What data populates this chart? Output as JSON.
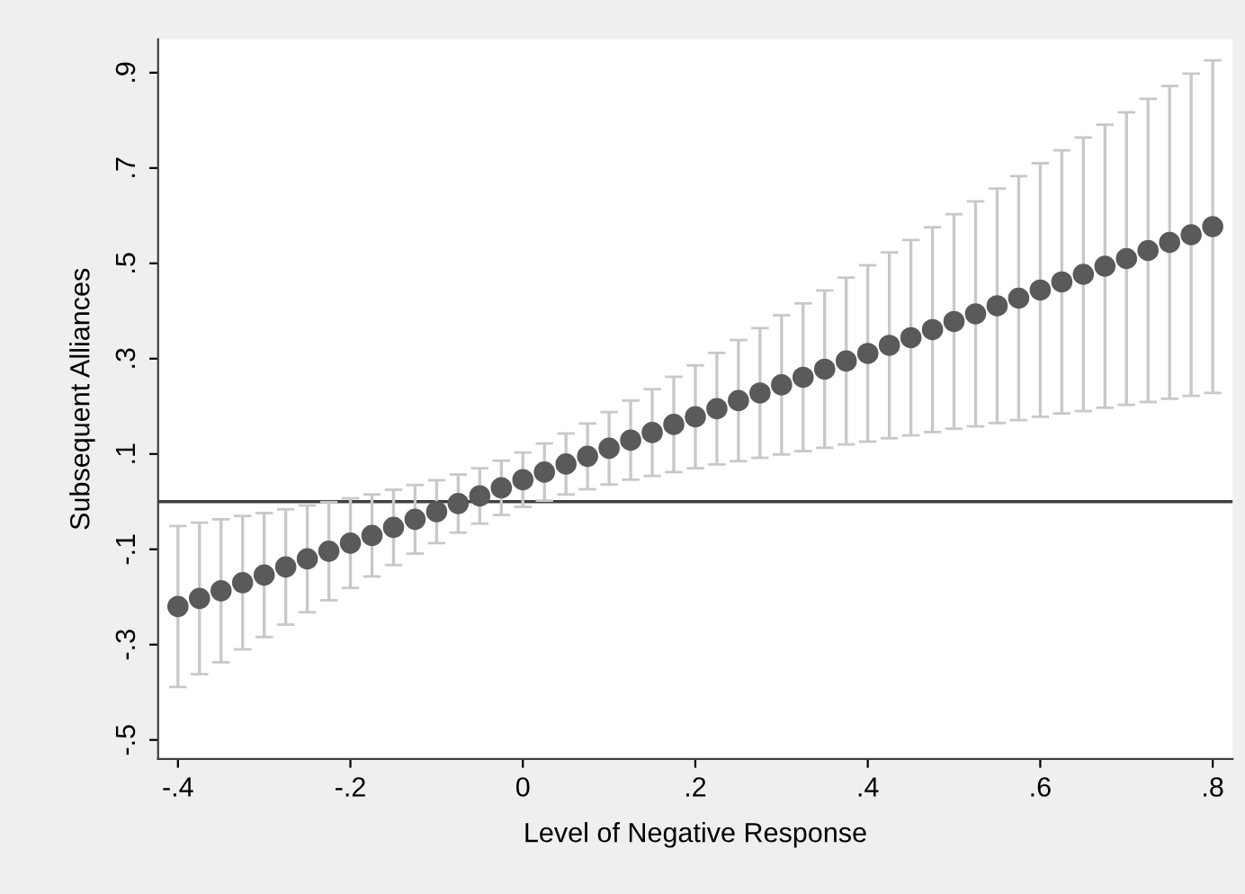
{
  "chart_data": {
    "type": "scatter",
    "xlabel": "Level of Negative Response",
    "ylabel": "Subsequent Alliances",
    "x": [
      -0.4,
      -0.375,
      -0.35,
      -0.325,
      -0.3,
      -0.275,
      -0.25,
      -0.225,
      -0.2,
      -0.175,
      -0.15,
      -0.125,
      -0.1,
      -0.075,
      -0.05,
      -0.025,
      0,
      0.025,
      0.05,
      0.075,
      0.1,
      0.125,
      0.15,
      0.175,
      0.2,
      0.225,
      0.25,
      0.275,
      0.3,
      0.325,
      0.35,
      0.375,
      0.4,
      0.425,
      0.45,
      0.475,
      0.5,
      0.525,
      0.55,
      0.575,
      0.6,
      0.625,
      0.65,
      0.675,
      0.7,
      0.725,
      0.75,
      0.775,
      0.8
    ],
    "series": [
      {
        "color": "#5a5a5a",
        "values": [
          -0.22,
          -0.203,
          -0.187,
          -0.17,
          -0.154,
          -0.137,
          -0.12,
          -0.104,
          -0.087,
          -0.071,
          -0.054,
          -0.037,
          -0.021,
          -0.004,
          0.012,
          0.029,
          0.046,
          0.062,
          0.079,
          0.095,
          0.112,
          0.129,
          0.145,
          0.162,
          0.178,
          0.195,
          0.212,
          0.228,
          0.245,
          0.261,
          0.278,
          0.295,
          0.311,
          0.328,
          0.344,
          0.361,
          0.378,
          0.394,
          0.411,
          0.427,
          0.444,
          0.461,
          0.477,
          0.494,
          0.51,
          0.527,
          0.544,
          0.56,
          0.577
        ],
        "errors": [
          0.169,
          0.159,
          0.15,
          0.14,
          0.13,
          0.121,
          0.112,
          0.103,
          0.094,
          0.086,
          0.079,
          0.072,
          0.066,
          0.061,
          0.058,
          0.057,
          0.057,
          0.06,
          0.064,
          0.069,
          0.076,
          0.083,
          0.091,
          0.1,
          0.108,
          0.117,
          0.127,
          0.136,
          0.146,
          0.155,
          0.165,
          0.175,
          0.185,
          0.195,
          0.205,
          0.215,
          0.225,
          0.236,
          0.246,
          0.256,
          0.266,
          0.276,
          0.287,
          0.297,
          0.307,
          0.318,
          0.328,
          0.338,
          0.349
        ]
      }
    ],
    "xlim": [
      -0.423,
      0.823
    ],
    "ylim": [
      -0.54,
      0.97
    ],
    "xticks": [
      {
        "value": -0.4,
        "label": "-.4"
      },
      {
        "value": -0.2,
        "label": "-.2"
      },
      0,
      {
        "value": 0.2,
        "label": ".2"
      },
      {
        "value": 0.4,
        "label": ".4"
      },
      {
        "value": 0.6,
        "label": ".6"
      },
      {
        "value": 0.8,
        "label": ".8"
      }
    ],
    "yticks": [
      {
        "value": -0.5,
        "label": "-.5"
      },
      {
        "value": -0.3,
        "label": "-.3"
      },
      {
        "value": -0.1,
        "label": "-.1"
      },
      {
        "value": 0.1,
        "label": ".1"
      },
      {
        "value": 0.3,
        "label": ".3"
      },
      {
        "value": 0.5,
        "label": ".5"
      },
      {
        "value": 0.7,
        "label": ".7"
      },
      {
        "value": 0.9,
        "label": ".9"
      }
    ],
    "ref_lines": [
      {
        "axis": "y",
        "value": 0,
        "color": "#404040"
      }
    ],
    "marker": "circle",
    "grid": false,
    "legend": false
  }
}
